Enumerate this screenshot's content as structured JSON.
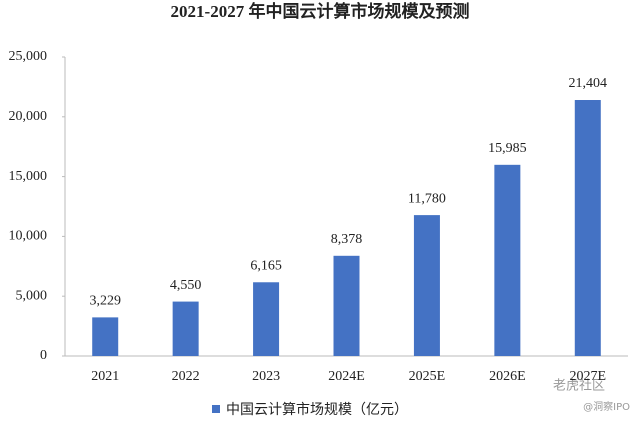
{
  "chart_data": {
    "type": "bar",
    "title": "2021-2027 年中国云计算市场规模及预测",
    "categories": [
      "2021",
      "2022",
      "2023",
      "2024E",
      "2025E",
      "2026E",
      "2027E"
    ],
    "series": [
      {
        "name": "中国云计算市场规模（亿元）",
        "color": "#4472c4",
        "values": [
          3229,
          4550,
          6165,
          8378,
          11780,
          15985,
          21404
        ],
        "value_labels": [
          "3,229",
          "4,550",
          "6,165",
          "8,378",
          "11,780",
          "15,985",
          "21,404"
        ]
      }
    ],
    "ylim": [
      0,
      25000
    ],
    "yticks": [
      0,
      {
        "value": 5000,
        "label": "5,000"
      },
      {
        "value": 10000,
        "label": "10,000"
      },
      {
        "value": 15000,
        "label": "15,000"
      },
      {
        "value": 20000,
        "label": "20,000"
      },
      {
        "value": 25000,
        "label": "25,000"
      }
    ],
    "grid": false,
    "legend": "bottom"
  },
  "watermark": {
    "brand": "老虎社区",
    "author": "@洞察IPO"
  }
}
